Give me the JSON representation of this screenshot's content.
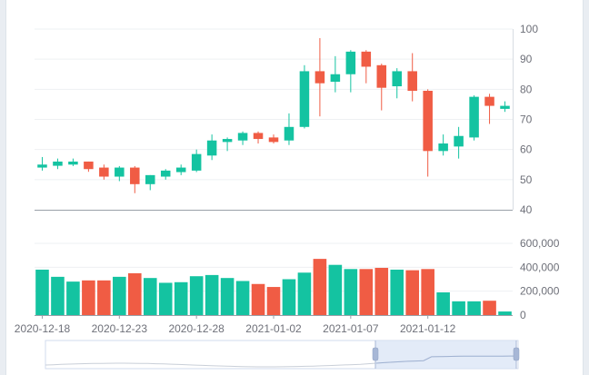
{
  "chart_data": {
    "type": "candlestick",
    "colors": {
      "up": "#14c3a1",
      "down": "#f05c44",
      "grid": "#eef0f3",
      "axis": "#9aa0a8"
    },
    "price_axis": {
      "ylim": [
        40,
        100
      ],
      "ticks": [
        "40",
        "50",
        "60",
        "70",
        "80",
        "90",
        "100"
      ]
    },
    "volume_axis": {
      "ylim": [
        0,
        600000
      ],
      "ticks": [
        "0",
        "200,000",
        "400,000",
        "600,000"
      ]
    },
    "x_tick_labels": [
      {
        "label": "2020-12-18",
        "index": 0
      },
      {
        "label": "2020-12-23",
        "index": 5
      },
      {
        "label": "2020-12-28",
        "index": 10
      },
      {
        "label": "2021-01-02",
        "index": 15
      },
      {
        "label": "2021-01-07",
        "index": 20
      },
      {
        "label": "2021-01-12",
        "index": 25
      }
    ],
    "candles": [
      {
        "date": "2020-12-18",
        "open": 54.0,
        "close": 55.0,
        "low": 53.0,
        "high": 57.5,
        "volume": 380000
      },
      {
        "date": "2020-12-19",
        "open": 54.6,
        "close": 56.0,
        "low": 53.5,
        "high": 57.0,
        "volume": 320000
      },
      {
        "date": "2020-12-20",
        "open": 55.0,
        "close": 56.0,
        "low": 54.5,
        "high": 57.0,
        "volume": 280000
      },
      {
        "date": "2020-12-21",
        "open": 56.0,
        "close": 53.5,
        "low": 52.6,
        "high": 56.0,
        "volume": 290000
      },
      {
        "date": "2020-12-22",
        "open": 54.0,
        "close": 51.0,
        "low": 50.0,
        "high": 55.0,
        "volume": 290000
      },
      {
        "date": "2020-12-23",
        "open": 51.0,
        "close": 54.0,
        "low": 49.5,
        "high": 54.5,
        "volume": 320000
      },
      {
        "date": "2020-12-24",
        "open": 54.0,
        "close": 48.5,
        "low": 45.5,
        "high": 54.5,
        "volume": 350000
      },
      {
        "date": "2020-12-25",
        "open": 48.5,
        "close": 51.5,
        "low": 46.5,
        "high": 51.5,
        "volume": 310000
      },
      {
        "date": "2020-12-26",
        "open": 51.0,
        "close": 53.0,
        "low": 50.0,
        "high": 53.5,
        "volume": 270000
      },
      {
        "date": "2020-12-27",
        "open": 52.5,
        "close": 54.0,
        "low": 51.5,
        "high": 55.0,
        "volume": 275000
      },
      {
        "date": "2020-12-28",
        "open": 53.0,
        "close": 58.5,
        "low": 52.5,
        "high": 60.0,
        "volume": 325000
      },
      {
        "date": "2020-12-29",
        "open": 58.0,
        "close": 63.0,
        "low": 56.5,
        "high": 65.0,
        "volume": 335000
      },
      {
        "date": "2020-12-30",
        "open": 62.5,
        "close": 63.5,
        "low": 59.5,
        "high": 64.0,
        "volume": 310000
      },
      {
        "date": "2020-12-31",
        "open": 63.0,
        "close": 65.5,
        "low": 61.5,
        "high": 66.0,
        "volume": 285000
      },
      {
        "date": "2021-01-01",
        "open": 65.5,
        "close": 63.5,
        "low": 62.0,
        "high": 66.0,
        "volume": 260000
      },
      {
        "date": "2021-01-02",
        "open": 64.0,
        "close": 62.5,
        "low": 62.0,
        "high": 65.0,
        "volume": 235000
      },
      {
        "date": "2021-01-03",
        "open": 63.0,
        "close": 67.5,
        "low": 61.5,
        "high": 72.0,
        "volume": 300000
      },
      {
        "date": "2021-01-04",
        "open": 67.5,
        "close": 86.0,
        "low": 67.0,
        "high": 88.0,
        "volume": 355000
      },
      {
        "date": "2021-01-05",
        "open": 86.0,
        "close": 82.0,
        "low": 71.0,
        "high": 97.0,
        "volume": 470000
      },
      {
        "date": "2021-01-06",
        "open": 82.5,
        "close": 85.0,
        "low": 79.0,
        "high": 91.0,
        "volume": 420000
      },
      {
        "date": "2021-01-07",
        "open": 85.0,
        "close": 92.5,
        "low": 79.0,
        "high": 93.0,
        "volume": 385000
      },
      {
        "date": "2021-01-08",
        "open": 92.5,
        "close": 87.5,
        "low": 82.0,
        "high": 93.0,
        "volume": 385000
      },
      {
        "date": "2021-01-09",
        "open": 88.0,
        "close": 80.5,
        "low": 73.0,
        "high": 88.5,
        "volume": 395000
      },
      {
        "date": "2021-01-10",
        "open": 81.0,
        "close": 86.0,
        "low": 77.0,
        "high": 87.0,
        "volume": 380000
      },
      {
        "date": "2021-01-11",
        "open": 86.0,
        "close": 79.5,
        "low": 76.0,
        "high": 92.0,
        "volume": 375000
      },
      {
        "date": "2021-01-12",
        "open": 79.5,
        "close": 59.5,
        "low": 51.0,
        "high": 80.0,
        "volume": 385000
      },
      {
        "date": "2021-01-13",
        "open": 59.5,
        "close": 62.0,
        "low": 58.0,
        "high": 65.0,
        "volume": 190000
      },
      {
        "date": "2021-01-14",
        "open": 61.0,
        "close": 64.5,
        "low": 57.0,
        "high": 67.5,
        "volume": 115000
      },
      {
        "date": "2021-01-15",
        "open": 64.0,
        "close": 77.5,
        "low": 63.0,
        "high": 78.0,
        "volume": 115000
      },
      {
        "date": "2021-01-16",
        "open": 77.5,
        "close": 74.5,
        "low": 68.5,
        "high": 78.5,
        "volume": 120000
      },
      {
        "date": "2021-01-17",
        "open": 73.5,
        "close": 74.5,
        "low": 72.5,
        "high": 76.0,
        "volume": 30000
      }
    ]
  }
}
